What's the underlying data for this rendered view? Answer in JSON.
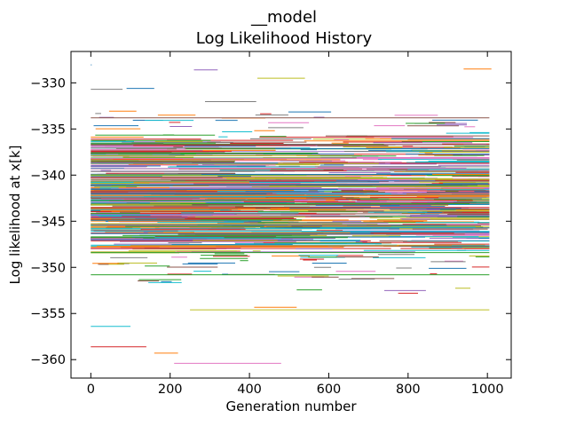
{
  "chart_data": {
    "type": "line",
    "title_line1": "__model",
    "title_line2": "Log Likelihood History",
    "xlabel": "Generation number",
    "ylabel": "Log likelihood at x[k]",
    "xlim": [
      -50,
      1060
    ],
    "ylim": [
      -362,
      -326.6
    ],
    "xticks": [
      0,
      200,
      400,
      600,
      800,
      1000
    ],
    "xtick_labels": [
      "0",
      "200",
      "400",
      "600",
      "800",
      "1000"
    ],
    "yticks": [
      -330,
      -335,
      -340,
      -345,
      -350,
      -355,
      -360
    ],
    "ytick_labels": [
      "−330",
      "−335",
      "−340",
      "−345",
      "−350",
      "−355",
      "−360"
    ],
    "grid": false,
    "legend": "none",
    "palette": [
      "#1f77b4",
      "#ff7f0e",
      "#2ca02c",
      "#d62728",
      "#9467bd",
      "#8c564b",
      "#e377c2",
      "#7f7f7f",
      "#bcbd22",
      "#17becf"
    ],
    "series_summary": "Many chains; each drawn as a horizontal step segment at its log likelihood over a generation range. Dense band between about -350 and -333.",
    "sample_segments": [
      {
        "x0": 0,
        "x1": 1005,
        "y": -341.0
      },
      {
        "x0": 0,
        "x1": 1005,
        "y": -343.5
      },
      {
        "x0": 0,
        "x1": 1005,
        "y": -338.2
      },
      {
        "x0": 0,
        "x1": 1005,
        "y": -346.1
      },
      {
        "x0": 0,
        "x1": 1005,
        "y": -348.4
      },
      {
        "x0": 0,
        "x1": 1005,
        "y": -336.7
      },
      {
        "x0": 420,
        "x1": 540,
        "y": -329.5
      },
      {
        "x0": 940,
        "x1": 1010,
        "y": -328.5
      },
      {
        "x0": 260,
        "x1": 320,
        "y": -328.6
      },
      {
        "x0": 0,
        "x1": 80,
        "y": -330.7
      },
      {
        "x0": 90,
        "x1": 160,
        "y": -330.6
      },
      {
        "x0": 0,
        "x1": 140,
        "y": -358.6
      },
      {
        "x0": 210,
        "x1": 480,
        "y": -360.4
      },
      {
        "x0": 0,
        "x1": 100,
        "y": -356.4
      },
      {
        "x0": 0,
        "x1": 1005,
        "y": -350.8
      },
      {
        "x0": 0,
        "x1": 1005,
        "y": -333.8
      },
      {
        "x0": 250,
        "x1": 1005,
        "y": -354.6
      },
      {
        "x0": 160,
        "x1": 220,
        "y": -359.3
      }
    ]
  }
}
